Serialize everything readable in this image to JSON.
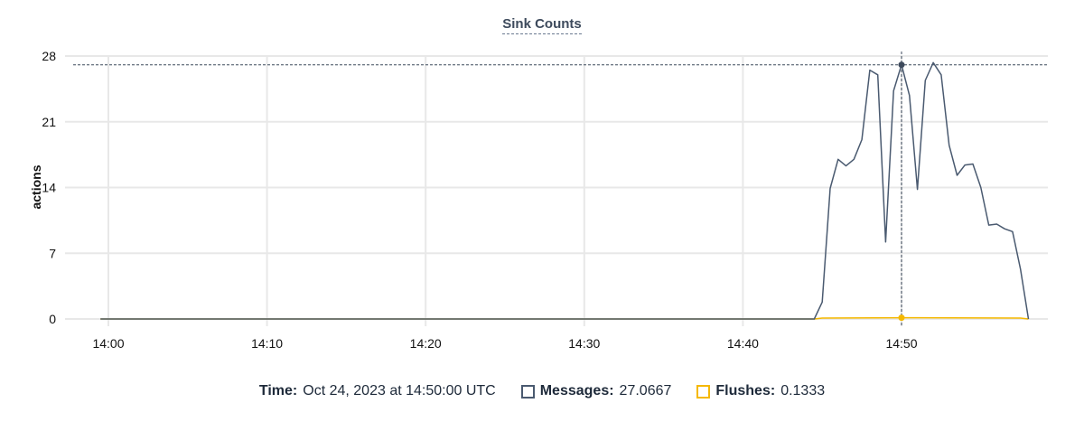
{
  "chart_data": {
    "type": "line",
    "title": "Sink Counts",
    "ylabel": "actions",
    "xlabel": "",
    "ylim": [
      0,
      28
    ],
    "yticks": [
      "0",
      "7",
      "14",
      "21",
      "28"
    ],
    "xlim": [
      "13:59:30",
      "14:58:30"
    ],
    "xticks": [
      "14:00",
      "14:10",
      "14:20",
      "14:30",
      "14:40",
      "14:50"
    ],
    "grid": true,
    "series": [
      {
        "name": "Messages",
        "color": "#4a5a70",
        "points": [
          [
            "13:59:30",
            0
          ],
          [
            "14:44:30",
            0
          ],
          [
            "14:45:00",
            1.8
          ],
          [
            "14:45:30",
            13.9
          ],
          [
            "14:46:00",
            17.0
          ],
          [
            "14:46:30",
            16.3
          ],
          [
            "14:47:00",
            17.0
          ],
          [
            "14:47:30",
            19.1
          ],
          [
            "14:48:00",
            26.5
          ],
          [
            "14:48:30",
            26.0
          ],
          [
            "14:49:00",
            8.2
          ],
          [
            "14:49:30",
            24.3
          ],
          [
            "14:50:00",
            27.0667
          ],
          [
            "14:50:30",
            23.8
          ],
          [
            "14:51:00",
            13.8
          ],
          [
            "14:51:30",
            25.4
          ],
          [
            "14:52:00",
            27.3
          ],
          [
            "14:52:30",
            26.0
          ],
          [
            "14:53:00",
            18.5
          ],
          [
            "14:53:30",
            15.3
          ],
          [
            "14:54:00",
            16.4
          ],
          [
            "14:54:30",
            16.5
          ],
          [
            "14:55:00",
            14.0
          ],
          [
            "14:55:30",
            10.0
          ],
          [
            "14:56:00",
            10.1
          ],
          [
            "14:56:30",
            9.6
          ],
          [
            "14:57:00",
            9.3
          ],
          [
            "14:57:30",
            5.3
          ],
          [
            "14:58:00",
            0
          ]
        ]
      },
      {
        "name": "Flushes",
        "color": "#f5b800",
        "points": [
          [
            "13:59:30",
            0
          ],
          [
            "14:44:30",
            0
          ],
          [
            "14:45:00",
            0.1
          ],
          [
            "14:50:00",
            0.1333
          ],
          [
            "14:57:30",
            0.1
          ],
          [
            "14:58:00",
            0
          ]
        ]
      }
    ],
    "hover": {
      "time": "14:50:00"
    }
  },
  "legend": {
    "time_label": "Time:",
    "time_value": "Oct 24, 2023 at 14:50:00 UTC",
    "messages_label": "Messages:",
    "messages_value": "27.0667",
    "flushes_label": "Flushes:",
    "flushes_value": "0.1333"
  }
}
